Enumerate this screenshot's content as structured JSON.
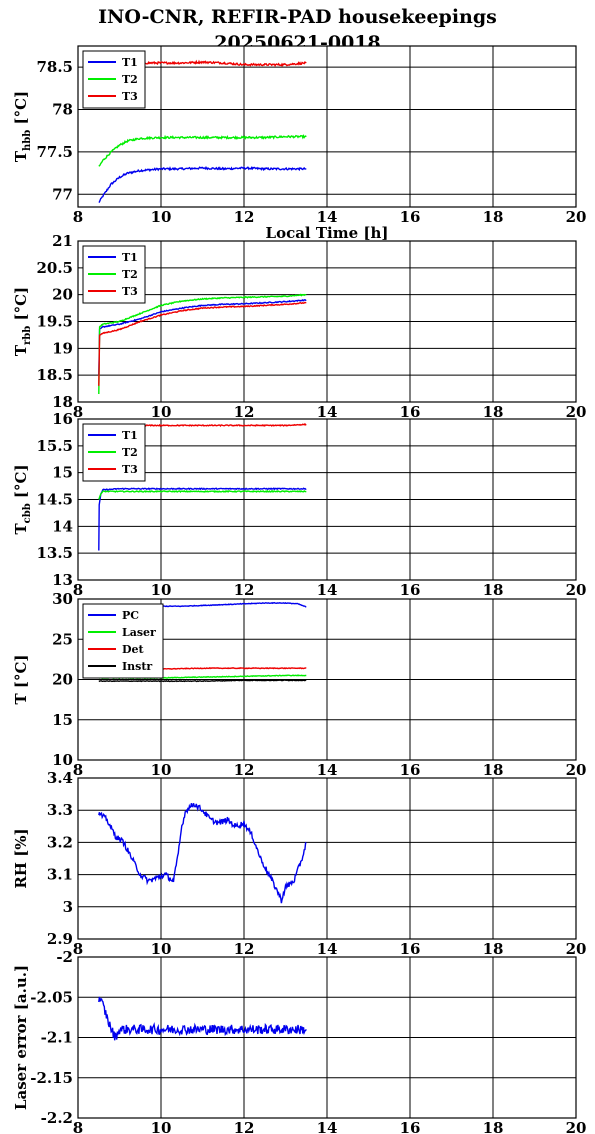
{
  "title": {
    "line1": "INO-CNR, REFIR-PAD housekeepings",
    "line2": "20250621-0018"
  },
  "colors": {
    "blue": "#0000ee",
    "green": "#00ee00",
    "red": "#ee0000",
    "black": "#000000",
    "grid": "#000000",
    "background": "#ffffff"
  },
  "chart_data": [
    {
      "id": "thbb",
      "type": "line",
      "ylabel": "T_hbb [°C]",
      "ylabel_main": "T",
      "ylabel_sub": "hbb",
      "ylabel_unit": " [°C]",
      "xlabel": "Local Time [h]",
      "xlim": [
        8,
        20
      ],
      "ylim": [
        76.85,
        78.75
      ],
      "xticks": [
        8,
        10,
        12,
        14,
        16,
        18,
        20
      ],
      "yticks": [
        77,
        77.5,
        78,
        78.5
      ],
      "ytick_labels": [
        "77",
        "77.5",
        "78",
        "78.5"
      ],
      "grid": true,
      "legend_position": "top-left",
      "series": [
        {
          "name": "T1",
          "color": "blue",
          "x": [
            8.5,
            8.6,
            8.7,
            8.8,
            9.0,
            9.2,
            9.5,
            10,
            10.5,
            11,
            11.5,
            12,
            12.5,
            13,
            13.5
          ],
          "y": [
            76.9,
            76.98,
            77.05,
            77.12,
            77.2,
            77.25,
            77.28,
            77.3,
            77.3,
            77.31,
            77.3,
            77.31,
            77.3,
            77.3,
            77.3
          ]
        },
        {
          "name": "T2",
          "color": "green",
          "x": [
            8.5,
            8.6,
            8.8,
            9.0,
            9.2,
            9.5,
            10,
            10.5,
            11,
            11.5,
            12,
            12.5,
            13,
            13.5
          ],
          "y": [
            77.32,
            77.4,
            77.5,
            77.58,
            77.63,
            77.66,
            77.67,
            77.67,
            77.67,
            77.67,
            77.67,
            77.67,
            77.68,
            77.68
          ]
        },
        {
          "name": "T3",
          "color": "red",
          "x": [
            8.5,
            9.0,
            9.5,
            10,
            10.5,
            11,
            11.5,
            12,
            12.5,
            13,
            13.5
          ],
          "y": [
            78.55,
            78.55,
            78.55,
            78.55,
            78.55,
            78.56,
            78.55,
            78.53,
            78.53,
            78.53,
            78.55
          ]
        }
      ]
    },
    {
      "id": "trbb",
      "type": "line",
      "ylabel": "T_rbb [°C]",
      "ylabel_main": "T",
      "ylabel_sub": "rbb",
      "ylabel_unit": " [°C]",
      "xlabel": "",
      "xlim": [
        8,
        20
      ],
      "ylim": [
        18,
        21
      ],
      "xticks": [
        8,
        10,
        12,
        14,
        16,
        18,
        20
      ],
      "yticks": [
        18,
        18.5,
        19,
        19.5,
        20,
        20.5,
        21
      ],
      "ytick_labels": [
        "18",
        "18.5",
        "19",
        "19.5",
        "20",
        "20.5",
        "21"
      ],
      "grid": true,
      "legend_position": "top-left",
      "series": [
        {
          "name": "T1",
          "color": "blue",
          "x": [
            8.5,
            8.52,
            8.6,
            9.0,
            9.5,
            10,
            10.5,
            11,
            11.5,
            12,
            12.5,
            13,
            13.5
          ],
          "y": [
            18.5,
            19.35,
            19.4,
            19.45,
            19.55,
            19.68,
            19.75,
            19.8,
            19.82,
            19.83,
            19.85,
            19.87,
            19.9
          ]
        },
        {
          "name": "T2",
          "color": "green",
          "x": [
            8.5,
            8.52,
            8.6,
            9.0,
            9.5,
            10,
            10.5,
            11,
            11.5,
            12,
            12.5,
            13,
            13.5
          ],
          "y": [
            18.15,
            19.4,
            19.45,
            19.5,
            19.65,
            19.8,
            19.88,
            19.92,
            19.94,
            19.95,
            19.96,
            19.97,
            20.0
          ]
        },
        {
          "name": "T3",
          "color": "red",
          "x": [
            8.5,
            8.52,
            8.6,
            9.0,
            9.5,
            10,
            10.5,
            11,
            11.5,
            12,
            12.5,
            13,
            13.5
          ],
          "y": [
            18.3,
            19.25,
            19.28,
            19.35,
            19.5,
            19.62,
            19.7,
            19.75,
            19.77,
            19.78,
            19.8,
            19.82,
            19.85
          ]
        }
      ]
    },
    {
      "id": "tcbb",
      "type": "line",
      "ylabel": "T_cbb [°C]",
      "ylabel_main": "T",
      "ylabel_sub": "cbb",
      "ylabel_unit": " [°C]",
      "xlabel": "",
      "xlim": [
        8,
        20
      ],
      "ylim": [
        13,
        16
      ],
      "xticks": [
        8,
        10,
        12,
        14,
        16,
        18,
        20
      ],
      "yticks": [
        13,
        13.5,
        14,
        14.5,
        15,
        15.5,
        16
      ],
      "ytick_labels": [
        "13",
        "13.5",
        "14",
        "14.5",
        "15",
        "15.5",
        "16"
      ],
      "grid": true,
      "legend_position": "top-left",
      "series": [
        {
          "name": "T1",
          "color": "blue",
          "x": [
            8.5,
            8.51,
            8.55,
            8.6,
            9.0,
            9.5,
            10,
            10.5,
            11,
            11.5,
            12,
            12.5,
            13,
            13.5
          ],
          "y": [
            13.55,
            14.4,
            14.6,
            14.68,
            14.7,
            14.7,
            14.7,
            14.7,
            14.7,
            14.7,
            14.7,
            14.7,
            14.7,
            14.7
          ]
        },
        {
          "name": "T2",
          "color": "green",
          "x": [
            8.5,
            8.55,
            8.6,
            9.0,
            9.5,
            10,
            10.5,
            11,
            11.5,
            12,
            12.5,
            13,
            13.5
          ],
          "y": [
            14.5,
            14.6,
            14.65,
            14.65,
            14.65,
            14.65,
            14.65,
            14.65,
            14.65,
            14.65,
            14.65,
            14.65,
            14.65
          ]
        },
        {
          "name": "T3",
          "color": "red",
          "x": [
            8.5,
            9.0,
            9.5,
            10,
            10.5,
            11,
            11.5,
            12,
            12.5,
            13,
            13.5
          ],
          "y": [
            15.85,
            15.87,
            15.88,
            15.88,
            15.88,
            15.88,
            15.88,
            15.88,
            15.88,
            15.88,
            15.9
          ]
        }
      ]
    },
    {
      "id": "temps",
      "type": "line",
      "ylabel": "T [°C]",
      "ylabel_main": "T [°C]",
      "ylabel_sub": "",
      "ylabel_unit": "",
      "xlabel": "",
      "xlim": [
        8,
        20
      ],
      "ylim": [
        10,
        30
      ],
      "xticks": [
        8,
        10,
        12,
        14,
        16,
        18,
        20
      ],
      "yticks": [
        10,
        15,
        20,
        25,
        30
      ],
      "ytick_labels": [
        "10",
        "15",
        "20",
        "25",
        "30"
      ],
      "grid": true,
      "legend_position": "top-left",
      "series": [
        {
          "name": "PC",
          "color": "blue",
          "x": [
            8.5,
            9.0,
            9.5,
            10,
            10.5,
            11,
            11.5,
            12,
            12.5,
            13,
            13.3,
            13.5
          ],
          "y": [
            29.0,
            29.0,
            29.0,
            29.1,
            29.1,
            29.2,
            29.3,
            29.4,
            29.5,
            29.5,
            29.4,
            29.0
          ]
        },
        {
          "name": "Laser",
          "color": "green",
          "x": [
            8.5,
            9.0,
            10,
            11,
            12,
            13,
            13.5
          ],
          "y": [
            20.2,
            20.2,
            20.2,
            20.3,
            20.4,
            20.5,
            20.5
          ]
        },
        {
          "name": "Det",
          "color": "red",
          "x": [
            8.5,
            9.0,
            10,
            11,
            12,
            13,
            13.5
          ],
          "y": [
            21.3,
            21.3,
            21.3,
            21.4,
            21.4,
            21.4,
            21.4
          ]
        },
        {
          "name": "Instr",
          "color": "black",
          "x": [
            8.5,
            9.0,
            10,
            11,
            12,
            13,
            13.5
          ],
          "y": [
            19.8,
            19.8,
            19.8,
            19.8,
            19.9,
            19.9,
            19.9
          ]
        }
      ]
    },
    {
      "id": "rh",
      "type": "line",
      "ylabel": "RH [%]",
      "ylabel_main": "RH [%]",
      "ylabel_sub": "",
      "ylabel_unit": "",
      "xlabel": "",
      "xlim": [
        8,
        20
      ],
      "ylim": [
        2.9,
        3.4
      ],
      "xticks": [
        8,
        10,
        12,
        14,
        16,
        18,
        20
      ],
      "yticks": [
        2.9,
        3,
        3.1,
        3.2,
        3.3,
        3.4
      ],
      "ytick_labels": [
        "2.9",
        "3",
        "3.1",
        "3.2",
        "3.3",
        "3.4"
      ],
      "grid": true,
      "legend_position": "none",
      "series": [
        {
          "name": "",
          "color": "blue",
          "x": [
            8.5,
            8.7,
            8.9,
            9.1,
            9.3,
            9.5,
            9.7,
            9.9,
            10.1,
            10.3,
            10.4,
            10.5,
            10.6,
            10.8,
            11.0,
            11.2,
            11.4,
            11.6,
            11.8,
            12.0,
            12.2,
            12.4,
            12.6,
            12.8,
            12.9,
            13.0,
            13.2,
            13.4,
            13.5
          ],
          "y": [
            3.29,
            3.27,
            3.22,
            3.2,
            3.15,
            3.1,
            3.08,
            3.09,
            3.1,
            3.08,
            3.15,
            3.25,
            3.3,
            3.32,
            3.3,
            3.27,
            3.26,
            3.27,
            3.25,
            3.26,
            3.22,
            3.15,
            3.1,
            3.05,
            3.02,
            3.06,
            3.08,
            3.15,
            3.2
          ]
        }
      ]
    },
    {
      "id": "laser",
      "type": "line",
      "ylabel": "Laser error [a.u.]",
      "ylabel_main": "Laser error [a.u.]",
      "ylabel_sub": "",
      "ylabel_unit": "",
      "xlabel": "Local Time [h]",
      "xlim": [
        8,
        20
      ],
      "ylim": [
        -2.2,
        -2
      ],
      "xticks": [
        8,
        10,
        12,
        14,
        16,
        18,
        20
      ],
      "yticks": [
        -2.2,
        -2.15,
        -2.1,
        -2.05,
        -2
      ],
      "ytick_labels": [
        "-2.2",
        "-2.15",
        "-2.1",
        "-2.05",
        "-2"
      ],
      "grid": true,
      "legend_position": "none",
      "series": [
        {
          "name": "",
          "color": "blue",
          "x": [
            8.5,
            8.6,
            8.7,
            8.8,
            8.9,
            9.0,
            9.2,
            9.5,
            10,
            10.5,
            11,
            11.5,
            12,
            12.5,
            13,
            13.5
          ],
          "y": [
            -2.05,
            -2.06,
            -2.075,
            -2.09,
            -2.1,
            -2.09,
            -2.09,
            -2.09,
            -2.09,
            -2.09,
            -2.09,
            -2.09,
            -2.09,
            -2.09,
            -2.09,
            -2.09
          ]
        }
      ]
    }
  ]
}
